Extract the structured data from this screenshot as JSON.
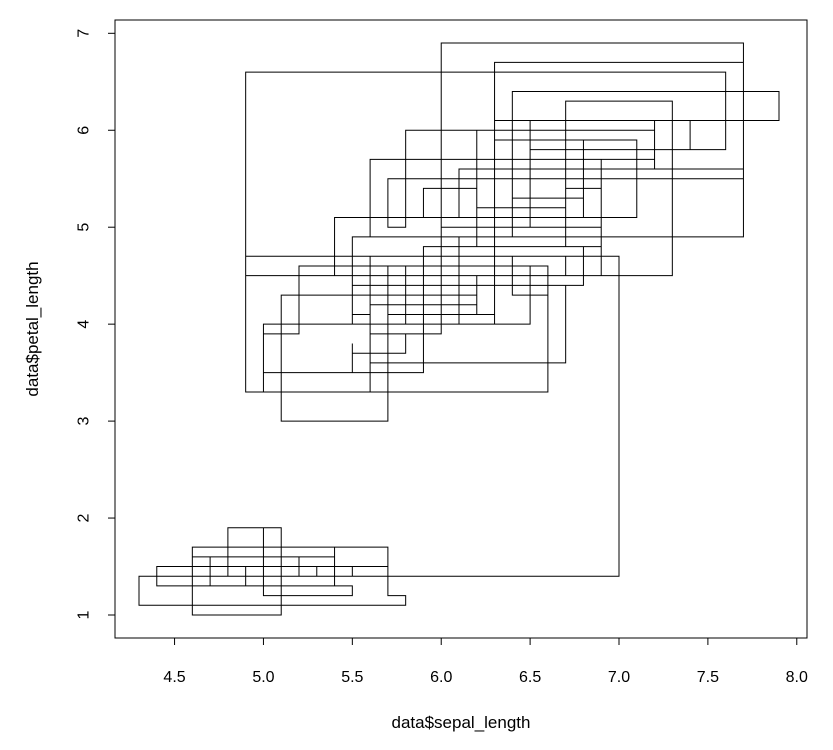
{
  "chart_data": {
    "type": "line",
    "style": "step",
    "xlabel": "data$sepal_length",
    "ylabel": "data$petal_length",
    "xlim": [
      4.3,
      7.9
    ],
    "ylim": [
      1.0,
      6.9
    ],
    "x_ticks": [
      4.5,
      5.0,
      5.5,
      6.0,
      6.5,
      7.0,
      7.5,
      8.0
    ],
    "x_tick_labels": [
      "4.5",
      "5.0",
      "5.5",
      "6.0",
      "6.5",
      "7.0",
      "7.5",
      "8.0"
    ],
    "y_ticks": [
      1,
      2,
      3,
      4,
      5,
      6,
      7
    ],
    "y_tick_labels": [
      "1",
      "2",
      "3",
      "4",
      "5",
      "6",
      "7"
    ],
    "grid": false,
    "legend": "none",
    "line_color": "#000000",
    "series": [
      {
        "x": [
          5.1,
          4.9,
          4.7,
          4.6,
          5.0,
          5.4,
          4.6,
          5.0,
          4.4,
          4.9,
          5.4,
          4.8,
          4.8,
          4.3,
          5.8,
          5.7,
          5.4,
          5.1,
          5.7,
          5.1,
          5.4,
          5.1,
          4.6,
          5.1,
          4.8,
          5.0,
          5.0,
          5.2,
          5.2,
          4.7,
          4.8,
          5.4,
          5.2,
          5.5,
          4.9,
          5.0,
          5.5,
          4.9,
          4.4,
          5.1,
          5.0,
          4.5,
          4.4,
          5.0,
          5.1,
          4.8,
          5.1,
          4.6,
          5.3,
          5.0,
          7.0,
          6.4,
          6.9,
          5.5,
          6.5,
          5.7,
          6.3,
          4.9,
          6.6,
          5.2,
          5.0,
          5.9,
          6.0,
          6.1,
          5.6,
          6.7,
          5.6,
          5.8,
          6.2,
          5.6,
          5.9,
          6.1,
          6.3,
          6.1,
          6.4,
          6.6,
          6.8,
          6.7,
          6.0,
          5.7,
          5.5,
          5.5,
          5.8,
          6.0,
          5.4,
          6.0,
          6.7,
          6.3,
          5.6,
          5.5,
          5.5,
          6.1,
          5.8,
          5.0,
          5.6,
          5.7,
          5.7,
          6.2,
          5.1,
          5.7,
          6.3,
          5.8,
          7.1,
          6.3,
          6.5,
          7.6,
          4.9,
          7.3,
          6.7,
          7.2,
          6.5,
          6.4,
          6.8,
          5.7,
          5.8,
          6.4,
          6.5,
          7.7,
          7.7,
          6.0,
          6.9,
          5.6,
          7.7,
          6.3,
          6.7,
          7.2,
          6.2,
          6.1,
          6.4,
          7.2,
          7.4,
          7.9,
          6.4,
          6.3,
          6.1,
          7.7,
          6.3,
          6.4,
          6.0,
          6.9,
          6.7,
          6.9,
          5.8,
          6.8,
          6.7,
          6.7,
          6.3,
          6.5,
          6.2,
          5.9
        ],
        "y": [
          1.4,
          1.4,
          1.3,
          1.5,
          1.4,
          1.7,
          1.4,
          1.5,
          1.4,
          1.5,
          1.5,
          1.6,
          1.4,
          1.1,
          1.2,
          1.5,
          1.3,
          1.4,
          1.7,
          1.5,
          1.7,
          1.5,
          1.0,
          1.7,
          1.9,
          1.6,
          1.6,
          1.5,
          1.4,
          1.6,
          1.6,
          1.5,
          1.5,
          1.4,
          1.5,
          1.2,
          1.3,
          1.5,
          1.3,
          1.5,
          1.3,
          1.3,
          1.3,
          1.6,
          1.9,
          1.4,
          1.6,
          1.4,
          1.5,
          1.4,
          4.7,
          4.5,
          4.9,
          4.0,
          4.6,
          4.5,
          4.7,
          3.3,
          4.6,
          3.9,
          3.5,
          4.2,
          4.0,
          4.7,
          3.6,
          4.4,
          4.5,
          4.1,
          4.5,
          3.9,
          4.8,
          4.0,
          4.9,
          4.7,
          4.3,
          4.4,
          4.8,
          5.0,
          4.5,
          3.5,
          3.8,
          3.7,
          3.9,
          5.1,
          4.5,
          4.5,
          4.7,
          4.4,
          4.1,
          4.0,
          4.4,
          4.6,
          4.0,
          3.3,
          4.2,
          4.2,
          4.2,
          4.3,
          3.0,
          4.1,
          6.0,
          5.1,
          5.9,
          5.6,
          5.8,
          6.6,
          4.5,
          6.3,
          5.8,
          6.1,
          5.1,
          5.3,
          5.5,
          5.0,
          5.1,
          5.3,
          5.5,
          6.7,
          6.9,
          5.0,
          5.7,
          4.9,
          6.7,
          4.9,
          5.7,
          6.0,
          4.8,
          4.9,
          5.6,
          5.8,
          6.1,
          6.4,
          5.6,
          5.1,
          5.6,
          6.1,
          5.6,
          5.5,
          4.8,
          5.4,
          5.6,
          5.1,
          5.1,
          5.9,
          5.7,
          5.2,
          5.0,
          5.2,
          5.4,
          5.1
        ]
      }
    ]
  }
}
